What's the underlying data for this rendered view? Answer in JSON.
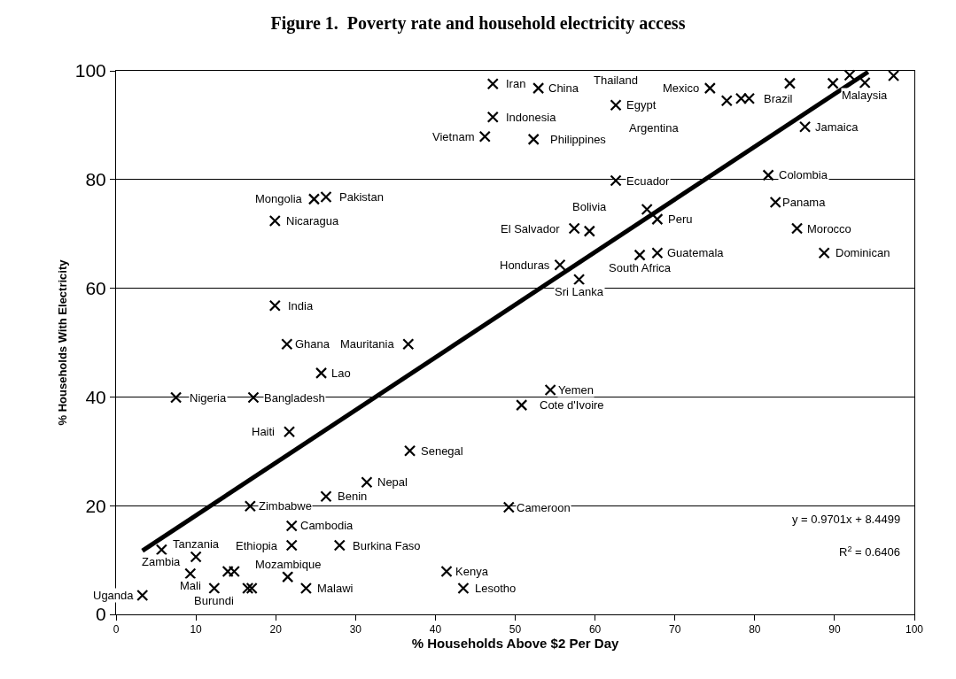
{
  "chart_data": {
    "type": "scatter",
    "title": "Figure 1.  Poverty rate and household electricity access",
    "xlabel": "% Households Above $2 Per Day",
    "ylabel": "% Households With Electricity",
    "xlim": [
      0,
      100
    ],
    "xticks": [
      0,
      10,
      20,
      30,
      40,
      50,
      60,
      70,
      80,
      90,
      100
    ],
    "ylim": [
      0,
      100
    ],
    "yticks": [
      0,
      20,
      40,
      60,
      80,
      100
    ],
    "grid": "y",
    "series": [
      {
        "marker": "cross",
        "color": "#000000",
        "x": [
          47.2,
          52.9,
          47.2,
          46.2,
          52.3,
          62.6,
          74.4,
          76.5,
          78.3,
          79.3,
          84.4,
          89.8,
          91.9,
          93.8,
          97.4,
          86.3,
          62.6,
          81.7,
          82.6,
          85.3,
          88.7,
          66.5,
          67.8,
          57.4,
          59.3,
          55.6,
          58.0,
          65.6,
          67.8,
          24.8,
          26.3,
          19.9,
          19.9,
          21.4,
          36.6,
          25.7,
          7.5,
          17.2,
          21.7,
          36.8,
          31.4,
          26.3,
          16.8,
          22.0,
          22.0,
          28.0,
          5.7,
          10.0,
          9.3,
          14.0,
          14.8,
          12.3,
          16.5,
          17.0,
          21.5,
          23.8,
          3.3,
          41.4,
          43.5,
          54.4,
          50.8,
          49.2
        ],
        "values": [
          97.6,
          96.8,
          91.5,
          87.9,
          87.4,
          93.7,
          96.8,
          94.5,
          94.9,
          94.9,
          97.7,
          97.7,
          99.2,
          97.8,
          99.1,
          89.7,
          79.8,
          80.8,
          75.8,
          71.0,
          66.5,
          74.5,
          72.7,
          71.0,
          70.5,
          64.3,
          61.6,
          66.1,
          66.5,
          76.4,
          76.8,
          72.4,
          56.8,
          49.7,
          49.7,
          44.4,
          39.9,
          39.9,
          33.6,
          30.1,
          24.3,
          21.7,
          19.9,
          16.3,
          12.7,
          12.7,
          11.9,
          10.6,
          7.5,
          7.9,
          7.9,
          4.8,
          4.8,
          4.8,
          6.9,
          4.8,
          3.5,
          7.9,
          4.8,
          41.3,
          38.5,
          19.7
        ]
      },
      {
        "type": "line",
        "color": "#000000",
        "marker": "none",
        "x": [
          3.3,
          94.2
        ],
        "values": [
          11.7,
          99.8
        ]
      }
    ],
    "annotations": [
      {
        "text": "Iran",
        "x": 47.2,
        "y": 97.6
      },
      {
        "text": "China",
        "x": 52.9,
        "y": 96.8
      },
      {
        "text": "Indonesia",
        "x": 47.2,
        "y": 91.5
      },
      {
        "text": "Vietnam",
        "x": 46.2,
        "y": 87.9
      },
      {
        "text": "Egypt",
        "x": 62.6,
        "y": 93.7
      },
      {
        "text": "Philippines",
        "x": 52.3,
        "y": 87.4
      },
      {
        "text": "Thailand",
        "x": 62.6,
        "y": 93.7
      },
      {
        "text": "Argentina",
        "x": 62.6,
        "y": 93.7
      },
      {
        "text": "Mexico",
        "x": 74.4,
        "y": 96.8
      },
      {
        "text": "Brazil",
        "x": 79.3,
        "y": 94.9
      },
      {
        "text": "Malaysia",
        "x": 93.8,
        "y": 97.8
      },
      {
        "text": "Jamaica",
        "x": 86.3,
        "y": 89.7
      },
      {
        "text": "Ecuador",
        "x": 62.6,
        "y": 79.8
      },
      {
        "text": "Colombia",
        "x": 81.7,
        "y": 80.8
      },
      {
        "text": "Panama",
        "x": 82.6,
        "y": 75.8
      },
      {
        "text": "Morocco",
        "x": 85.3,
        "y": 71.0
      },
      {
        "text": "Dominican",
        "x": 88.7,
        "y": 66.5
      },
      {
        "text": "El Salvador",
        "x": 57.4,
        "y": 71.0
      },
      {
        "text": "Peru",
        "x": 67.8,
        "y": 72.7
      },
      {
        "text": "Bolivia",
        "x": 59.3,
        "y": 70.5
      },
      {
        "text": "Honduras",
        "x": 55.6,
        "y": 64.3
      },
      {
        "text": "Guatemala",
        "x": 67.8,
        "y": 66.5
      },
      {
        "text": "South Africa",
        "x": 65.6,
        "y": 66.1
      },
      {
        "text": "Sri Lanka",
        "x": 58.0,
        "y": 61.6
      },
      {
        "text": "Mongolia",
        "x": 24.8,
        "y": 76.4
      },
      {
        "text": "Pakistan",
        "x": 26.3,
        "y": 76.8
      },
      {
        "text": "Nicaragua",
        "x": 19.9,
        "y": 72.4
      },
      {
        "text": "India",
        "x": 19.9,
        "y": 56.8
      },
      {
        "text": "Mauritania",
        "x": 36.6,
        "y": 49.7
      },
      {
        "text": "Ghana",
        "x": 21.4,
        "y": 49.7
      },
      {
        "text": "Bangladesh",
        "x": 17.2,
        "y": 39.9
      },
      {
        "text": "Lao",
        "x": 25.7,
        "y": 44.4
      },
      {
        "text": "Nigeria",
        "x": 7.5,
        "y": 39.9
      },
      {
        "text": "Haiti",
        "x": 21.7,
        "y": 33.6
      },
      {
        "text": "Senegal",
        "x": 36.8,
        "y": 30.1
      },
      {
        "text": "Benin",
        "x": 26.3,
        "y": 21.7
      },
      {
        "text": "Nepal",
        "x": 31.4,
        "y": 24.3
      },
      {
        "text": "Zimbabwe",
        "x": 16.8,
        "y": 19.9
      },
      {
        "text": "Cambodia",
        "x": 22.0,
        "y": 16.3
      },
      {
        "text": "Ethiopia",
        "x": 22.0,
        "y": 12.7
      },
      {
        "text": "Burkina Faso",
        "x": 28.0,
        "y": 12.7
      },
      {
        "text": "Zambia",
        "x": 5.7,
        "y": 11.9
      },
      {
        "text": "Tanzania",
        "x": 10.0,
        "y": 10.6
      },
      {
        "text": "Mozambique",
        "x": 21.5,
        "y": 6.9
      },
      {
        "text": "Mali",
        "x": 9.3,
        "y": 7.5
      },
      {
        "text": "Malawi",
        "x": 23.8,
        "y": 4.8
      },
      {
        "text": "Burundi",
        "x": 12.3,
        "y": 4.8
      },
      {
        "text": "Uganda",
        "x": 3.3,
        "y": 3.5
      },
      {
        "text": "Kenya",
        "x": 41.4,
        "y": 7.9
      },
      {
        "text": "Lesotho",
        "x": 43.5,
        "y": 4.8
      },
      {
        "text": "Yemen",
        "x": 54.4,
        "y": 41.3
      },
      {
        "text": "Cote d'Ivoire",
        "x": 50.8,
        "y": 38.5
      },
      {
        "text": "Cameroon",
        "x": 49.2,
        "y": 19.7
      },
      "y = 0.9701x + 8.4499",
      "R$^{2}$ = 0.6406"
    ]
  }
}
